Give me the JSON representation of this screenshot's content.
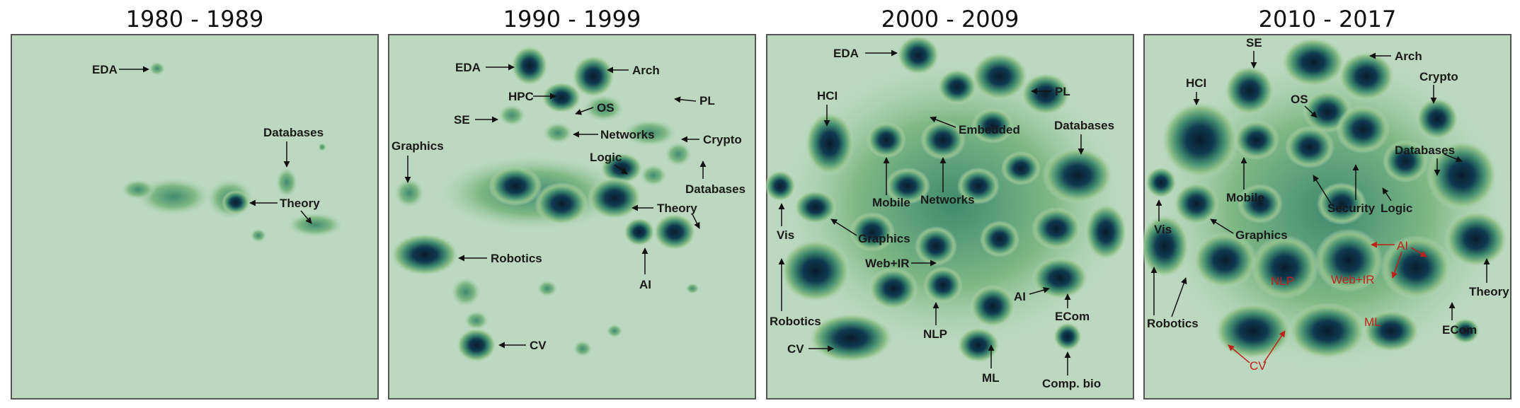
{
  "panels": [
    {
      "title": "1980 - 1989",
      "labels": {
        "eda": "EDA",
        "databases": "Databases",
        "theory": "Theory"
      }
    },
    {
      "title": "1990 - 1999",
      "labels": {
        "eda": "EDA",
        "arch": "Arch",
        "hpc": "HPC",
        "os": "OS",
        "pl": "PL",
        "se": "SE",
        "networks": "Networks",
        "crypto": "Crypto",
        "graphics": "Graphics",
        "logic": "Logic",
        "databases": "Databases",
        "theory": "Theory",
        "robotics": "Robotics",
        "ai": "AI",
        "cv": "CV"
      }
    },
    {
      "title": "2000 - 2009",
      "labels": {
        "eda": "EDA",
        "pl": "PL",
        "hci": "HCI",
        "embedded": "Embedded",
        "databases": "Databases",
        "mobile": "Mobile",
        "networks": "Networks",
        "vis": "Vis",
        "graphics": "Graphics",
        "webir": "Web+IR",
        "ai": "AI",
        "robotics": "Robotics",
        "nlp": "NLP",
        "ecom": "ECom",
        "cv": "CV",
        "ml": "ML",
        "compbio": "Comp. bio"
      }
    },
    {
      "title": "2010 - 2017",
      "labels": {
        "se": "SE",
        "arch": "Arch",
        "hci": "HCI",
        "os": "OS",
        "crypto": "Crypto",
        "databases": "Databases",
        "mobile": "Mobile",
        "security": "Security",
        "logic": "Logic",
        "vis": "Vis",
        "graphics": "Graphics",
        "ai": "AI",
        "nlp": "NLP",
        "webir": "Web+IR",
        "theory": "Theory",
        "robotics": "Robotics",
        "ml": "ML",
        "ecom": "ECom",
        "cv": "CV"
      }
    }
  ],
  "colors": {
    "background": "#bcd9bf",
    "border": "#555555",
    "density_low": "#8fc08a",
    "density_mid": "#3f8a6e",
    "density_high": "#0e3a4f",
    "density_peak": "#0a1c2c",
    "label_text": "#1a1a1a",
    "arrow": "#7a1515",
    "highlight_text": "#c0201a"
  }
}
